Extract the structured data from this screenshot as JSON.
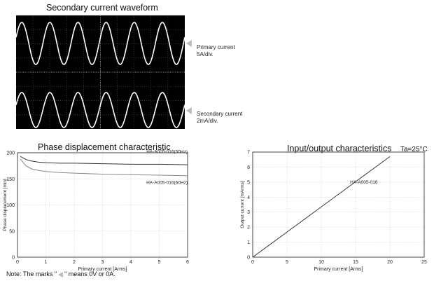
{
  "oscilloscope": {
    "title": "Secondary current waveform",
    "primary_label_line1": "Primary current",
    "primary_label_line2": "5A/div.",
    "secondary_label_line1": "Secondary current",
    "secondary_label_line2": "2mA/div.",
    "background_color": "#000000",
    "trace_color": "#ffffff",
    "grid_color": "#4a4a4a"
  },
  "chart_data": [
    {
      "type": "line",
      "title": "Phase displacement characteristic",
      "xlabel": "Primary current [Arms]",
      "ylabel": "Phase displacement [min]",
      "xlim": [
        0,
        6
      ],
      "ylim": [
        0,
        200
      ],
      "xticks": [
        "0",
        "1",
        "2",
        "3",
        "4",
        "5",
        "6"
      ],
      "yticks": [
        "0",
        "50",
        "100",
        "150",
        "200"
      ],
      "grid": true,
      "series": [
        {
          "name": "HA-A005-016(50Hz)",
          "color": "#333333",
          "x": [
            0.1,
            0.3,
            0.5,
            0.75,
            1,
            1.5,
            2,
            3,
            4,
            5,
            6
          ],
          "y": [
            193,
            187,
            184,
            182,
            181,
            180,
            180,
            179,
            178,
            178,
            177
          ]
        },
        {
          "name": "HA-A005-016(60Hz)",
          "color": "#888888",
          "x": [
            0.1,
            0.3,
            0.5,
            0.75,
            1,
            1.5,
            2,
            3,
            4,
            5,
            6
          ],
          "y": [
            188,
            175,
            169,
            166,
            164,
            162,
            161,
            159,
            158,
            157,
            156
          ]
        }
      ]
    },
    {
      "type": "line",
      "title": "Input/output characteristics",
      "annotation": "Ta=25°C",
      "xlabel": "Primary current [Arms]",
      "ylabel": "Output current [mArms]",
      "xlim": [
        0,
        25
      ],
      "ylim": [
        0,
        7
      ],
      "xticks": [
        "0",
        "5",
        "10",
        "15",
        "20",
        "25"
      ],
      "yticks": [
        "0",
        "1",
        "2",
        "3",
        "4",
        "5",
        "6",
        "7"
      ],
      "grid": true,
      "series": [
        {
          "name": "HA-A005-016",
          "color": "#333333",
          "x": [
            0,
            20
          ],
          "y": [
            0,
            6.7
          ]
        }
      ]
    }
  ],
  "note": {
    "prefix": "Note: The marks \"",
    "suffix": "\" means 0V or 0A."
  }
}
